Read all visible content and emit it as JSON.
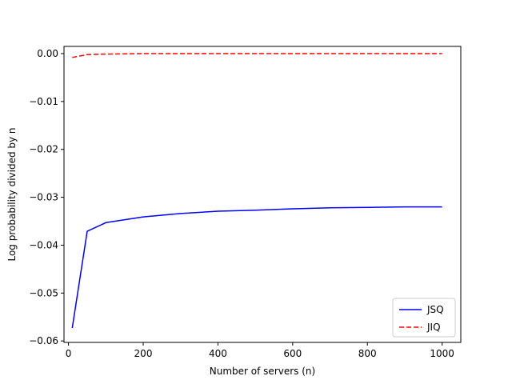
{
  "chart_data": {
    "type": "line",
    "title": "",
    "xlabel": "Number of servers (n)",
    "ylabel": "Log probability divided by n",
    "xlim": [
      -12,
      1050
    ],
    "ylim": [
      -0.0603,
      0.0015
    ],
    "xticks": [
      0,
      200,
      400,
      600,
      800,
      1000
    ],
    "xtick_labels": [
      "0",
      "200",
      "400",
      "600",
      "800",
      "1000"
    ],
    "yticks": [
      0.0,
      -0.01,
      -0.02,
      -0.03,
      -0.04,
      -0.05,
      -0.06
    ],
    "ytick_labels": [
      "0.00",
      "−0.01",
      "−0.02",
      "−0.03",
      "−0.04",
      "−0.05",
      "−0.06"
    ],
    "grid": false,
    "legend_position": "lower-right",
    "series": [
      {
        "name": "JSQ",
        "color": "#0000ff",
        "style": "solid",
        "x": [
          10,
          50,
          100,
          200,
          300,
          400,
          500,
          600,
          700,
          800,
          900,
          1000
        ],
        "y": [
          -0.0573,
          -0.0371,
          -0.0353,
          -0.0341,
          -0.0334,
          -0.0329,
          -0.0327,
          -0.0324,
          -0.0322,
          -0.0321,
          -0.032,
          -0.032
        ]
      },
      {
        "name": "JIQ",
        "color": "#ff0000",
        "style": "dashed",
        "x": [
          10,
          50,
          100,
          200,
          300,
          400,
          500,
          600,
          700,
          800,
          900,
          1000
        ],
        "y": [
          -0.0008,
          -0.0002,
          -0.0001,
          0.0,
          0.0,
          0.0,
          0.0,
          0.0,
          0.0,
          0.0,
          0.0,
          0.0
        ]
      }
    ]
  }
}
